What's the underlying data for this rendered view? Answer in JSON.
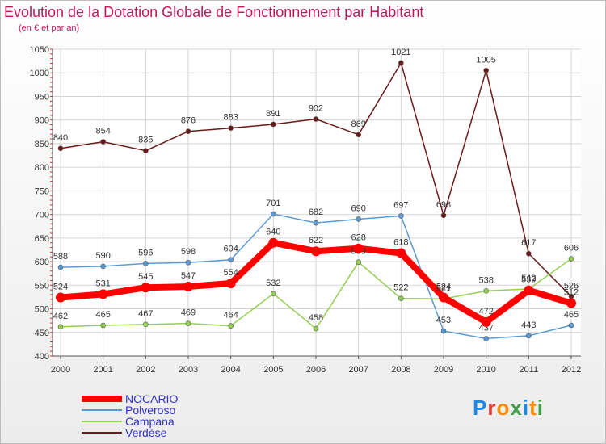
{
  "title": "Evolution de la Dotation Globale de Fonctionnement par Habitant",
  "subtitle": "(en € et par an)",
  "logo": {
    "letters": [
      {
        "ch": "P",
        "color": "#1e88e5"
      },
      {
        "ch": "r",
        "color": "#e53935"
      },
      {
        "ch": "o",
        "color": "#fb8c00"
      },
      {
        "ch": "x",
        "color": "#43a047"
      },
      {
        "ch": "i",
        "color": "#1e88e5"
      },
      {
        "ch": "t",
        "color": "#fb8c00"
      },
      {
        "ch": "i",
        "color": "#43a047"
      }
    ]
  },
  "chart_data": {
    "type": "line",
    "title": "Evolution de la Dotation Globale de Fonctionnement par Habitant",
    "subtitle": "(en € et par an)",
    "categories": [
      "2000",
      "2001",
      "2002",
      "2003",
      "2004",
      "2005",
      "2006",
      "2007",
      "2008",
      "2009",
      "2010",
      "2011",
      "2012"
    ],
    "ylim": [
      400,
      1050
    ],
    "yticks": [
      400,
      450,
      500,
      550,
      600,
      650,
      700,
      750,
      800,
      850,
      900,
      950,
      1000,
      1050
    ],
    "grid": true,
    "legend_position": "bottom-left",
    "series": [
      {
        "name": "Verdèse",
        "color": "#6b1a1a",
        "values": [
          840,
          854,
          835,
          876,
          883,
          891,
          902,
          869,
          1021,
          698,
          1005,
          617,
          526
        ]
      },
      {
        "name": "Polveroso",
        "color": "#5b9bd5",
        "values": [
          588,
          590,
          596,
          598,
          604,
          701,
          682,
          690,
          697,
          453,
          437,
          443,
          465
        ]
      },
      {
        "name": "Campana",
        "color": "#92d050",
        "values": [
          462,
          465,
          467,
          469,
          464,
          532,
          458,
          599,
          522,
          521,
          538,
          542,
          606
        ]
      },
      {
        "name": "NOCARIO",
        "color": "#ff0000",
        "values": [
          524,
          531,
          545,
          547,
          554,
          640,
          622,
          628,
          618,
          524,
          472,
          539,
          512
        ]
      }
    ]
  },
  "legend": {
    "items": [
      {
        "name": "NOCARIO",
        "color": "#ff0000"
      },
      {
        "name": "Polveroso",
        "color": "#5b9bd5"
      },
      {
        "name": "Campana",
        "color": "#92d050"
      },
      {
        "name": "Verdèse",
        "color": "#6b1a1a"
      }
    ]
  }
}
